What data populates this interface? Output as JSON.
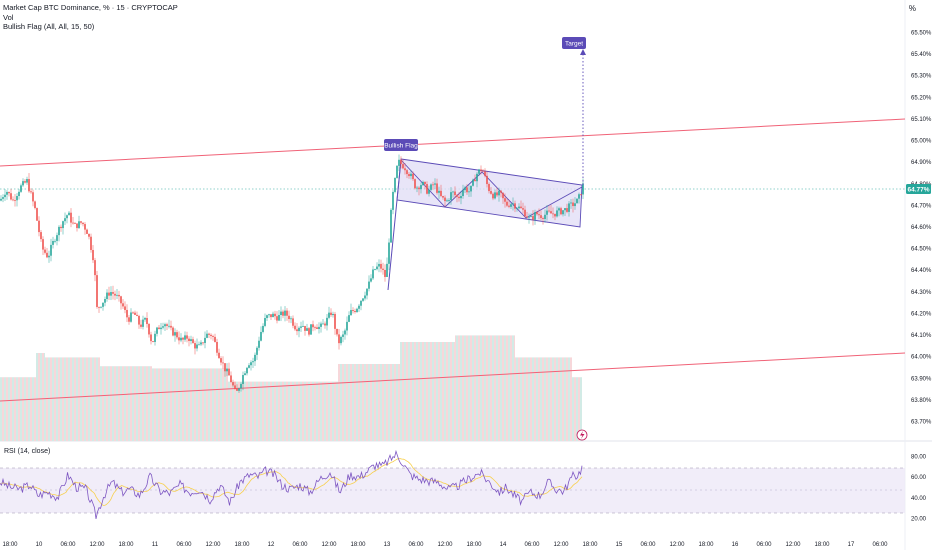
{
  "legend": {
    "symbol_line": "Market Cap BTC Dominance, % · 15 · CRYPTOCAP",
    "vol_label": "Vol",
    "indicator_label": "Bullish Flag (All, All, 15, 50)"
  },
  "corner_label": "%",
  "rsi_label": "RSI (14, close)",
  "annotations": {
    "bullish_flag": "Bullish Flag",
    "target": "Target"
  },
  "price_axis": [
    "65.50%",
    "65.40%",
    "65.30%",
    "65.20%",
    "65.10%",
    "65.00%",
    "64.90%",
    "64.80%",
    "64.70%",
    "64.60%",
    "64.50%",
    "64.40%",
    "64.30%",
    "64.20%",
    "64.10%",
    "64.00%",
    "63.90%",
    "63.80%",
    "63.70%"
  ],
  "current_price": "64.77%",
  "rsi_axis": [
    "80.00",
    "60.00",
    "40.00",
    "20.00"
  ],
  "time_axis": [
    "18:00",
    "10",
    "06:00",
    "12:00",
    "18:00",
    "11",
    "06:00",
    "12:00",
    "18:00",
    "12",
    "06:00",
    "12:00",
    "18:00",
    "13",
    "06:00",
    "12:00",
    "18:00",
    "14",
    "06:00",
    "12:00",
    "18:00",
    "15",
    "06:00",
    "12:00",
    "18:00",
    "16",
    "06:00",
    "12:00",
    "18:00",
    "17",
    "06:00"
  ],
  "colors": {
    "up": "#26a69a",
    "down": "#ef5350",
    "flag": "#5b4bb7",
    "flag_fill": "#e0dcf5",
    "channel": "#f06277",
    "rsi": "#7e57c2",
    "rsi_ma": "#f7d04e",
    "price_tag": "#26a69a"
  },
  "chart_data": {
    "type": "candlestick",
    "price_range": [
      63.65,
      65.55
    ],
    "price_path": [
      [
        0,
        64.72
      ],
      [
        6,
        64.77
      ],
      [
        13,
        64.72
      ],
      [
        20,
        64.78
      ],
      [
        27,
        64.81
      ],
      [
        35,
        64.68
      ],
      [
        42,
        64.5
      ],
      [
        48,
        64.46
      ],
      [
        55,
        64.55
      ],
      [
        62,
        64.62
      ],
      [
        68,
        64.66
      ],
      [
        74,
        64.6
      ],
      [
        82,
        64.62
      ],
      [
        88,
        64.57
      ],
      [
        94,
        64.44
      ],
      [
        97,
        64.22
      ],
      [
        104,
        64.26
      ],
      [
        110,
        64.3
      ],
      [
        116,
        64.28
      ],
      [
        122,
        64.24
      ],
      [
        128,
        64.17
      ],
      [
        134,
        64.2
      ],
      [
        140,
        64.14
      ],
      [
        146,
        64.17
      ],
      [
        152,
        64.06
      ],
      [
        158,
        64.13
      ],
      [
        164,
        64.16
      ],
      [
        170,
        64.12
      ],
      [
        176,
        64.1
      ],
      [
        182,
        64.07
      ],
      [
        188,
        64.09
      ],
      [
        194,
        64.05
      ],
      [
        200,
        64.04
      ],
      [
        206,
        64.1
      ],
      [
        212,
        64.1
      ],
      [
        218,
        64.02
      ],
      [
        224,
        63.95
      ],
      [
        230,
        63.9
      ],
      [
        236,
        63.82
      ],
      [
        242,
        63.9
      ],
      [
        248,
        63.97
      ],
      [
        254,
        63.98
      ],
      [
        260,
        64.1
      ],
      [
        266,
        64.18
      ],
      [
        272,
        64.19
      ],
      [
        278,
        64.18
      ],
      [
        284,
        64.2
      ],
      [
        290,
        64.18
      ],
      [
        296,
        64.13
      ],
      [
        302,
        64.15
      ],
      [
        308,
        64.11
      ],
      [
        314,
        64.15
      ],
      [
        320,
        64.13
      ],
      [
        326,
        64.16
      ],
      [
        332,
        64.21
      ],
      [
        338,
        64.06
      ],
      [
        344,
        64.1
      ],
      [
        350,
        64.2
      ],
      [
        356,
        64.22
      ],
      [
        362,
        64.27
      ],
      [
        368,
        64.32
      ],
      [
        374,
        64.4
      ],
      [
        380,
        64.42
      ],
      [
        386,
        64.36
      ],
      [
        392,
        64.72
      ],
      [
        398,
        64.9
      ],
      [
        404,
        64.88
      ],
      [
        410,
        64.84
      ],
      [
        416,
        64.78
      ],
      [
        422,
        64.8
      ],
      [
        428,
        64.76
      ],
      [
        434,
        64.8
      ],
      [
        440,
        64.74
      ],
      [
        446,
        64.71
      ],
      [
        452,
        64.76
      ],
      [
        458,
        64.73
      ],
      [
        464,
        64.78
      ],
      [
        470,
        64.76
      ],
      [
        476,
        64.84
      ],
      [
        482,
        64.87
      ],
      [
        488,
        64.78
      ],
      [
        494,
        64.74
      ],
      [
        500,
        64.75
      ],
      [
        506,
        64.7
      ],
      [
        512,
        64.71
      ],
      [
        518,
        64.69
      ],
      [
        524,
        64.67
      ],
      [
        530,
        64.63
      ],
      [
        536,
        64.66
      ],
      [
        542,
        64.65
      ],
      [
        548,
        64.66
      ],
      [
        554,
        64.66
      ],
      [
        560,
        64.67
      ],
      [
        566,
        64.68
      ],
      [
        572,
        64.7
      ],
      [
        578,
        64.72
      ],
      [
        583,
        64.79
      ]
    ],
    "volume_levels": [
      [
        0,
        36,
        0.29
      ],
      [
        36,
        45,
        0.4
      ],
      [
        45,
        100,
        0.38
      ],
      [
        100,
        152,
        0.34
      ],
      [
        152,
        228,
        0.33
      ],
      [
        228,
        338,
        0.27
      ],
      [
        338,
        400,
        0.35
      ],
      [
        400,
        455,
        0.45
      ],
      [
        455,
        515,
        0.48
      ],
      [
        515,
        572,
        0.38
      ],
      [
        572,
        582,
        0.29
      ]
    ],
    "rsi_range": [
      15,
      85
    ],
    "rsi_band": [
      30,
      70
    ],
    "rsi_path": [
      [
        0,
        55
      ],
      [
        10,
        50
      ],
      [
        20,
        48
      ],
      [
        30,
        52
      ],
      [
        38,
        42
      ],
      [
        48,
        45
      ],
      [
        58,
        40
      ],
      [
        68,
        62
      ],
      [
        76,
        50
      ],
      [
        86,
        48
      ],
      [
        96,
        22
      ],
      [
        104,
        42
      ],
      [
        112,
        55
      ],
      [
        122,
        45
      ],
      [
        130,
        48
      ],
      [
        140,
        42
      ],
      [
        150,
        60
      ],
      [
        160,
        46
      ],
      [
        170,
        44
      ],
      [
        180,
        52
      ],
      [
        190,
        45
      ],
      [
        200,
        48
      ],
      [
        210,
        38
      ],
      [
        220,
        52
      ],
      [
        230,
        35
      ],
      [
        240,
        55
      ],
      [
        250,
        62
      ],
      [
        258,
        60
      ],
      [
        266,
        66
      ],
      [
        274,
        62
      ],
      [
        282,
        52
      ],
      [
        290,
        48
      ],
      [
        300,
        52
      ],
      [
        310,
        45
      ],
      [
        320,
        58
      ],
      [
        330,
        65
      ],
      [
        340,
        45
      ],
      [
        350,
        62
      ],
      [
        360,
        60
      ],
      [
        368,
        66
      ],
      [
        376,
        72
      ],
      [
        382,
        70
      ],
      [
        388,
        75
      ],
      [
        396,
        82
      ],
      [
        402,
        75
      ],
      [
        410,
        62
      ],
      [
        418,
        58
      ],
      [
        428,
        56
      ],
      [
        438,
        55
      ],
      [
        448,
        48
      ],
      [
        456,
        50
      ],
      [
        464,
        55
      ],
      [
        472,
        60
      ],
      [
        480,
        64
      ],
      [
        486,
        58
      ],
      [
        494,
        50
      ],
      [
        500,
        45
      ],
      [
        506,
        50
      ],
      [
        514,
        42
      ],
      [
        522,
        36
      ],
      [
        530,
        45
      ],
      [
        540,
        42
      ],
      [
        548,
        55
      ],
      [
        556,
        48
      ],
      [
        564,
        46
      ],
      [
        572,
        60
      ],
      [
        578,
        62
      ],
      [
        583,
        71
      ]
    ]
  }
}
